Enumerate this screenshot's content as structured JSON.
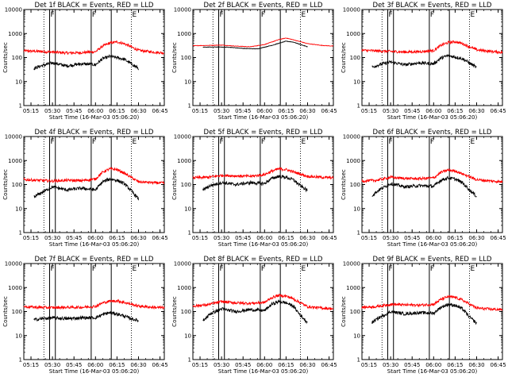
{
  "chart_data": {
    "type": "line",
    "y_scale": "log",
    "ylim": [
      1,
      10000
    ],
    "y_ticks": [
      "1",
      "10",
      "100",
      "1000",
      "10000"
    ],
    "x_range": [
      "05:10",
      "06:48"
    ],
    "x_ticks": [
      "05:15",
      "05:30",
      "05:45",
      "06:00",
      "06:15",
      "06:30",
      "06:45"
    ],
    "grid": false,
    "series_colors": {
      "black": "#000000",
      "red": "#ff0000"
    },
    "vertical_markers": [
      {
        "label": "",
        "time": "05:24",
        "style": "dotted"
      },
      {
        "label": "F",
        "time": "05:28",
        "style": "solid"
      },
      {
        "label": "",
        "time": "05:32",
        "style": "solid"
      },
      {
        "label": "F",
        "time": "05:57",
        "style": "solid"
      },
      {
        "label": "",
        "time": "06:11",
        "style": "solid"
      },
      {
        "label": "E",
        "time": "06:25",
        "style": "dotted"
      }
    ],
    "panels": [
      {
        "title": "Det 1f BLACK = Events, RED = LLD",
        "ylabel": "Counts/sec",
        "xlabel": "Start Time (16-Mar-03 05:06:20)",
        "red": {
          "t": [
            "05:10",
            "05:20",
            "05:30",
            "05:40",
            "05:50",
            "06:00",
            "06:05",
            "06:10",
            "06:15",
            "06:20",
            "06:30",
            "06:40",
            "06:48"
          ],
          "v": [
            190,
            180,
            170,
            155,
            160,
            175,
            300,
            400,
            450,
            380,
            200,
            170,
            155
          ]
        },
        "black": {
          "t": [
            "05:17",
            "05:22",
            "05:30",
            "05:40",
            "05:50",
            "06:00",
            "06:05",
            "06:10",
            "06:15",
            "06:20",
            "06:25",
            "06:30"
          ],
          "v": [
            35,
            45,
            60,
            45,
            55,
            50,
            90,
            110,
            100,
            85,
            55,
            35
          ]
        }
      },
      {
        "title": "Det 2f BLACK = Events, RED = LLD",
        "ylabel": "Counts/sec",
        "xlabel": "Start Time (16-Mar-03 05:06:20)",
        "red": {
          "t": [
            "05:10",
            "05:20",
            "05:30",
            "05:40",
            "05:50",
            "06:00",
            "06:10",
            "06:15",
            "06:20",
            "06:30",
            "06:40",
            "06:48"
          ],
          "v": [
            310,
            320,
            330,
            300,
            280,
            350,
            560,
            650,
            550,
            380,
            320,
            300
          ]
        },
        "black": {
          "t": [
            "05:17",
            "05:25",
            "05:35",
            "05:45",
            "05:55",
            "06:05",
            "06:15",
            "06:20",
            "06:30"
          ],
          "v": [
            270,
            275,
            270,
            240,
            230,
            320,
            480,
            440,
            280
          ]
        }
      },
      {
        "title": "Det 3f BLACK = Events, RED = LLD",
        "ylabel": "Counts/sec",
        "xlabel": "Start Time (16-Mar-03 05:06:20)",
        "red": {
          "t": [
            "05:10",
            "05:20",
            "05:30",
            "05:40",
            "05:50",
            "06:00",
            "06:05",
            "06:10",
            "06:15",
            "06:20",
            "06:30",
            "06:40",
            "06:48"
          ],
          "v": [
            200,
            190,
            180,
            170,
            175,
            195,
            320,
            420,
            460,
            380,
            210,
            180,
            165
          ]
        },
        "black": {
          "t": [
            "05:17",
            "05:22",
            "05:30",
            "05:40",
            "05:50",
            "06:00",
            "06:05",
            "06:10",
            "06:15",
            "06:20",
            "06:25",
            "06:30"
          ],
          "v": [
            40,
            50,
            65,
            50,
            60,
            55,
            95,
            120,
            105,
            90,
            60,
            38
          ]
        }
      },
      {
        "title": "Det 4f BLACK = Events, RED = LLD",
        "ylabel": "Counts/sec",
        "xlabel": "Start Time (16-Mar-03 05:06:20)",
        "red": {
          "t": [
            "05:10",
            "05:20",
            "05:30",
            "05:40",
            "05:50",
            "06:00",
            "06:05",
            "06:10",
            "06:15",
            "06:20",
            "06:30",
            "06:40",
            "06:48"
          ],
          "v": [
            160,
            150,
            140,
            150,
            145,
            170,
            330,
            450,
            420,
            300,
            130,
            120,
            115
          ]
        },
        "black": {
          "t": [
            "05:17",
            "05:22",
            "05:30",
            "05:40",
            "05:50",
            "06:00",
            "06:05",
            "06:10",
            "06:15",
            "06:20",
            "06:25",
            "06:30"
          ],
          "v": [
            30,
            45,
            80,
            60,
            70,
            60,
            130,
            170,
            150,
            110,
            55,
            25
          ]
        }
      },
      {
        "title": "Det 5f BLACK = Events, RED = LLD",
        "ylabel": "Counts/sec",
        "xlabel": "Start Time (16-Mar-03 05:06:20)",
        "red": {
          "t": [
            "05:10",
            "05:20",
            "05:30",
            "05:40",
            "05:50",
            "06:00",
            "06:05",
            "06:10",
            "06:15",
            "06:20",
            "06:30",
            "06:40",
            "06:48"
          ],
          "v": [
            190,
            200,
            240,
            230,
            220,
            260,
            360,
            450,
            420,
            340,
            220,
            200,
            190
          ]
        },
        "black": {
          "t": [
            "05:17",
            "05:22",
            "05:30",
            "05:40",
            "05:50",
            "06:00",
            "06:05",
            "06:10",
            "06:15",
            "06:20",
            "06:25",
            "06:30"
          ],
          "v": [
            60,
            90,
            120,
            100,
            120,
            110,
            180,
            220,
            200,
            160,
            90,
            55
          ]
        }
      },
      {
        "title": "Det 6f BLACK = Events, RED = LLD",
        "ylabel": "Counts/sec",
        "xlabel": "Start Time (16-Mar-03 05:06:20)",
        "red": {
          "t": [
            "05:10",
            "05:20",
            "05:30",
            "05:40",
            "05:50",
            "06:00",
            "06:05",
            "06:10",
            "06:15",
            "06:20",
            "06:30",
            "06:40",
            "06:48"
          ],
          "v": [
            140,
            150,
            200,
            180,
            175,
            190,
            320,
            400,
            370,
            280,
            160,
            140,
            130
          ]
        },
        "black": {
          "t": [
            "05:17",
            "05:22",
            "05:30",
            "05:40",
            "05:50",
            "06:00",
            "06:05",
            "06:10",
            "06:15",
            "06:20",
            "06:25",
            "06:30"
          ],
          "v": [
            35,
            60,
            110,
            80,
            90,
            85,
            150,
            190,
            170,
            120,
            60,
            32
          ]
        }
      },
      {
        "title": "Det 7f BLACK = Events, RED = LLD",
        "ylabel": "Counts/sec",
        "xlabel": "Start Time (16-Mar-03 05:06:20)",
        "red": {
          "t": [
            "05:10",
            "05:20",
            "05:30",
            "05:40",
            "05:50",
            "06:00",
            "06:05",
            "06:10",
            "06:15",
            "06:20",
            "06:30",
            "06:40",
            "06:48"
          ],
          "v": [
            160,
            150,
            145,
            150,
            150,
            165,
            230,
            270,
            280,
            240,
            170,
            150,
            145
          ]
        },
        "black": {
          "t": [
            "05:17",
            "05:22",
            "05:30",
            "05:40",
            "05:50",
            "06:00",
            "06:05",
            "06:10",
            "06:15",
            "06:20",
            "06:25",
            "06:30"
          ],
          "v": [
            45,
            50,
            55,
            50,
            55,
            55,
            75,
            90,
            80,
            65,
            50,
            42
          ]
        }
      },
      {
        "title": "Det 8f BLACK = Events, RED = LLD",
        "ylabel": "Counts/sec",
        "xlabel": "Start Time (16-Mar-03 05:06:20)",
        "red": {
          "t": [
            "05:10",
            "05:20",
            "05:30",
            "05:40",
            "05:50",
            "06:00",
            "06:05",
            "06:10",
            "06:15",
            "06:20",
            "06:30",
            "06:40",
            "06:48"
          ],
          "v": [
            170,
            190,
            260,
            230,
            220,
            240,
            380,
            470,
            440,
            340,
            160,
            140,
            130
          ]
        },
        "black": {
          "t": [
            "05:17",
            "05:22",
            "05:30",
            "05:40",
            "05:50",
            "06:00",
            "06:05",
            "06:10",
            "06:15",
            "06:20",
            "06:25",
            "06:30"
          ],
          "v": [
            40,
            80,
            130,
            100,
            120,
            110,
            200,
            260,
            230,
            170,
            70,
            35
          ]
        }
      },
      {
        "title": "Det 9f BLACK = Events, RED = LLD",
        "ylabel": "Counts/sec",
        "xlabel": "Start Time (16-Mar-03 05:06:20)",
        "red": {
          "t": [
            "05:10",
            "05:20",
            "05:30",
            "05:40",
            "05:50",
            "06:00",
            "06:05",
            "06:10",
            "06:15",
            "06:20",
            "06:30",
            "06:40",
            "06:48"
          ],
          "v": [
            150,
            160,
            200,
            190,
            185,
            200,
            320,
            420,
            390,
            300,
            140,
            125,
            120
          ]
        },
        "black": {
          "t": [
            "05:17",
            "05:22",
            "05:30",
            "05:40",
            "05:50",
            "06:00",
            "06:05",
            "06:10",
            "06:15",
            "06:20",
            "06:25",
            "06:30"
          ],
          "v": [
            35,
            55,
            100,
            80,
            90,
            85,
            150,
            200,
            180,
            130,
            60,
            32
          ]
        }
      }
    ]
  }
}
